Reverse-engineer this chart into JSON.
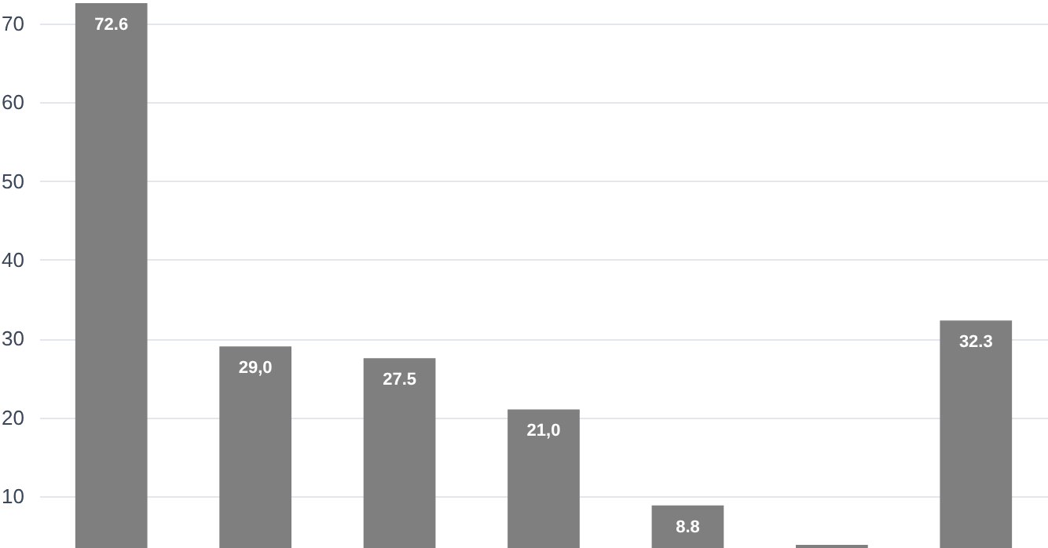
{
  "chart_data": {
    "type": "bar",
    "categories": [
      null,
      null,
      null,
      null,
      null,
      null,
      null
    ],
    "values": [
      72.6,
      29.0,
      27.5,
      21.0,
      8.8,
      3.8,
      32.3
    ],
    "value_labels": [
      "72.6",
      "29,0",
      "27.5",
      "21,0",
      "8.8",
      null,
      "32.3"
    ],
    "color": "#7f7f7f",
    "ylim": [
      3.4,
      73
    ],
    "yticks": [
      10,
      20,
      30,
      40,
      50,
      60,
      70
    ],
    "grid": "y"
  }
}
